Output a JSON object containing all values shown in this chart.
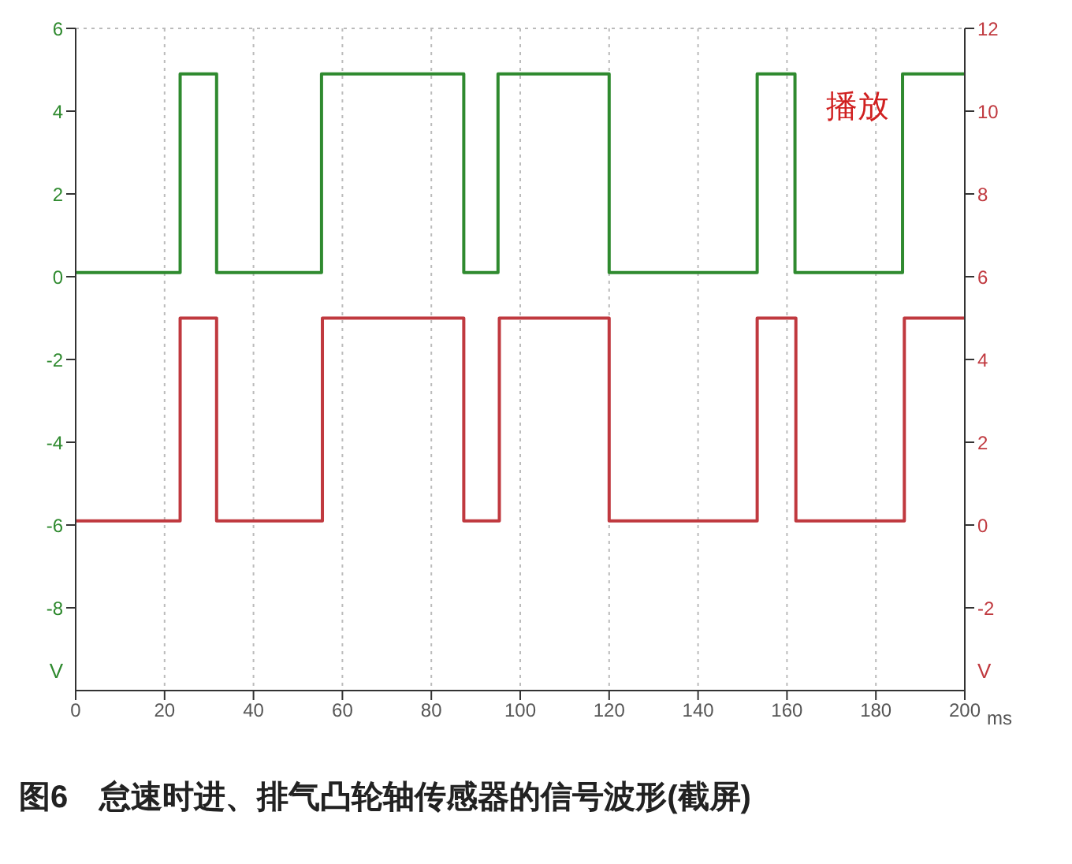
{
  "chart_data": {
    "type": "step",
    "title": "图6　怠速时进、排气凸轮轴传感器的信号波形(截屏)",
    "xlabel": "ms",
    "ylabel": "V",
    "y2label": "V",
    "annotations": [
      "播放"
    ],
    "xlim": [
      0,
      200
    ],
    "xticks": [
      0,
      20,
      40,
      60,
      80,
      100,
      120,
      140,
      160,
      180,
      200
    ],
    "ylim": [
      -10,
      6
    ],
    "yticks": [
      -8,
      -6,
      -4,
      -2,
      0,
      2,
      4,
      6
    ],
    "y2lim": [
      -4,
      12
    ],
    "y2ticks": [
      -2,
      0,
      2,
      4,
      6,
      8,
      10,
      12
    ],
    "grid": true,
    "legend": false,
    "marker": "none",
    "line_style": "solid",
    "series": [
      {
        "color": "#2f8a2f",
        "x": [
          0,
          23.5,
          31.7,
          55.3,
          87.3,
          95,
          120,
          153.3,
          161.8,
          186,
          200
        ],
        "values": [
          0.1,
          4.9,
          0.1,
          4.9,
          0.1,
          4.9,
          0.1,
          4.9,
          0.1,
          4.9,
          4.9
        ]
      },
      {
        "color": "#c0393f",
        "axis": "y2",
        "x": [
          0,
          23.5,
          31.7,
          55.5,
          87.3,
          95.3,
          120,
          153.3,
          162,
          186.4,
          200
        ],
        "values": [
          0.1,
          5,
          0.1,
          5,
          0.1,
          5,
          0.1,
          5,
          0.1,
          5,
          5
        ]
      }
    ]
  }
}
